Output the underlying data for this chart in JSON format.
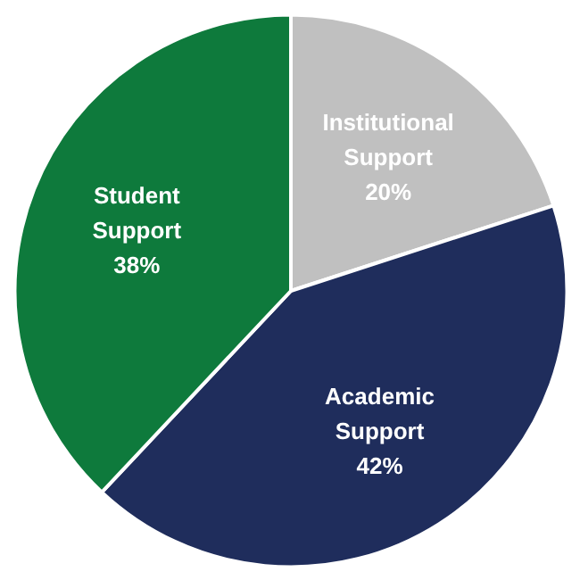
{
  "chart_data": {
    "type": "pie",
    "categories": [
      "Institutional Support",
      "Academic Support",
      "Student Support"
    ],
    "values": [
      20,
      42,
      38
    ],
    "colors": [
      "#c0c0c0",
      "#1f2d5c",
      "#0e7a3c"
    ],
    "value_labels": [
      "20%",
      "42%",
      "38%"
    ]
  }
}
